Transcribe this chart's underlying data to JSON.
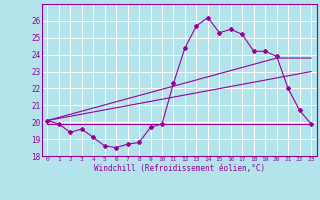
{
  "background_color": "#b3e4ec",
  "line_color": "#990099",
  "grid_color": "#ffffff",
  "xlabel": "Windchill (Refroidissement éolien,°C)",
  "xlim": [
    -0.5,
    23.5
  ],
  "ylim": [
    18,
    27
  ],
  "yticks": [
    18,
    19,
    20,
    21,
    22,
    23,
    24,
    25,
    26
  ],
  "xticks": [
    0,
    1,
    2,
    3,
    4,
    5,
    6,
    7,
    8,
    9,
    10,
    11,
    12,
    13,
    14,
    15,
    16,
    17,
    18,
    19,
    20,
    21,
    22,
    23
  ],
  "series1_x": [
    0,
    1,
    2,
    3,
    4,
    5,
    6,
    7,
    8,
    9,
    10,
    11,
    12,
    13,
    14,
    15,
    16,
    17,
    18,
    19,
    20,
    21,
    22,
    23
  ],
  "series1_y": [
    20.1,
    19.9,
    19.4,
    19.6,
    19.1,
    18.6,
    18.5,
    18.7,
    18.8,
    19.7,
    19.9,
    22.3,
    24.4,
    25.7,
    26.2,
    25.3,
    25.5,
    25.2,
    24.2,
    24.2,
    23.9,
    22.0,
    20.7,
    19.9
  ],
  "series2_x": [
    0,
    5,
    10,
    23
  ],
  "series2_y": [
    19.9,
    19.9,
    19.9,
    19.9
  ],
  "series3_x": [
    0,
    20,
    23
  ],
  "series3_y": [
    20.1,
    23.8,
    23.8
  ],
  "series4_x": [
    0,
    23
  ],
  "series4_y": [
    20.1,
    23.0
  ]
}
